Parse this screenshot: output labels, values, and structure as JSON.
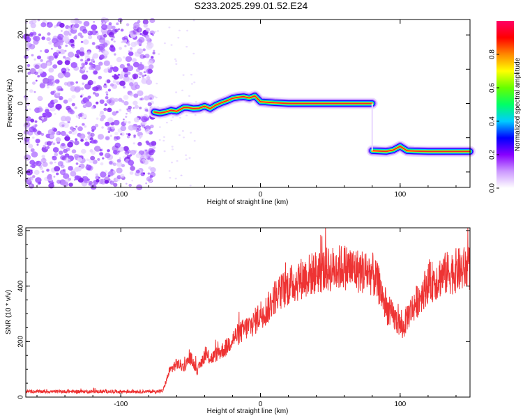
{
  "title": "S233.2025.299.01.52.E24",
  "chart_data": [
    {
      "type": "heatmap",
      "xlabel": "Height of straight line (km)",
      "ylabel": "Frequency (Hz)",
      "xlim": [
        -168,
        150
      ],
      "ylim": [
        -24.5,
        24.5
      ],
      "xticks": [
        -100,
        0,
        100
      ],
      "yticks": [
        -20,
        -10,
        0,
        10,
        20
      ],
      "colorbar": {
        "label": "Normalized spectral amplitude",
        "ticks": [
          0.0,
          0.2,
          0.4,
          0.6,
          0.8
        ],
        "range": [
          0,
          1
        ],
        "colors": [
          "#ffffff",
          "#cc99ff",
          "#8800ff",
          "#0000ff",
          "#00ccff",
          "#00ff66",
          "#66ff00",
          "#ffff00",
          "#ff8800",
          "#ff0000",
          "#ff0066"
        ]
      },
      "noise_region_x": [
        -168,
        -76
      ],
      "ridge": {
        "x": [
          -76,
          -72,
          -68,
          -64,
          -60,
          -55,
          -52,
          -48,
          -44,
          -40,
          -36,
          -32,
          -28,
          -24,
          -20,
          -16,
          -12,
          -8,
          -4,
          0,
          10,
          20,
          40,
          60,
          80
        ],
        "freq": [
          -2.5,
          -2.8,
          -2.5,
          -2.0,
          -2.3,
          -1.2,
          -1.2,
          -1.5,
          -1.4,
          -0.8,
          -1.5,
          -0.5,
          0.2,
          0.8,
          1.5,
          1.8,
          2.0,
          1.6,
          2.2,
          0.5,
          0.2,
          0.0,
          0.0,
          0.0,
          0.0
        ],
        "x2": [
          80,
          85,
          90,
          95,
          100,
          105,
          110,
          120,
          130,
          140,
          150
        ],
        "freq2": [
          -13.8,
          -13.9,
          -14.0,
          -13.6,
          -12.5,
          -13.8,
          -13.9,
          -14.0,
          -14.0,
          -14.0,
          -14.0
        ]
      }
    },
    {
      "type": "line",
      "xlabel": "Height of straight line (km)",
      "ylabel": "SNR (10 * v/v)",
      "xlim": [
        -168,
        150
      ],
      "ylim": [
        0,
        610
      ],
      "xticks": [
        -100,
        0,
        100
      ],
      "yticks": [
        0,
        200,
        400,
        600
      ],
      "color": "#ee3333",
      "x": [
        -168,
        -150,
        -130,
        -110,
        -90,
        -75,
        -70,
        -65,
        -60,
        -55,
        -50,
        -45,
        -40,
        -35,
        -30,
        -25,
        -20,
        -15,
        -10,
        -5,
        0,
        5,
        10,
        20,
        30,
        40,
        50,
        60,
        70,
        80,
        85,
        90,
        95,
        100,
        102,
        105,
        110,
        115,
        120,
        125,
        130,
        140,
        150
      ],
      "snr": [
        20,
        20,
        20,
        20,
        20,
        20,
        22,
        95,
        120,
        110,
        140,
        95,
        150,
        140,
        160,
        175,
        210,
        230,
        250,
        265,
        300,
        315,
        360,
        400,
        430,
        450,
        460,
        470,
        455,
        445,
        400,
        320,
        290,
        260,
        245,
        290,
        330,
        370,
        410,
        420,
        440,
        455,
        465
      ]
    }
  ]
}
